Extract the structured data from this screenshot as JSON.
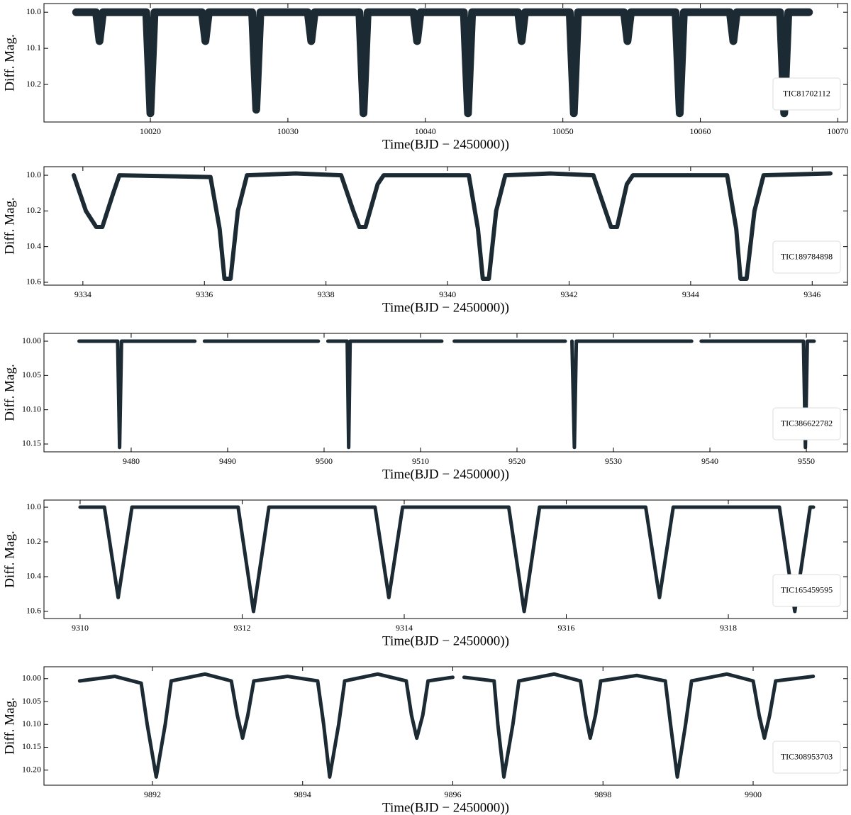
{
  "chart_data": [
    {
      "type": "line",
      "xlabel": "Time(BJD − 2450000))",
      "ylabel": "Diff. Mag.",
      "yinvert": true,
      "legend": "lower right",
      "xlim": [
        10012.26,
        10070.7
      ],
      "ylim": [
        9.976,
        10.304
      ],
      "xticks": [
        10020,
        10030,
        10040,
        10050,
        10060,
        10070
      ],
      "yticks": [
        {
          "value": 10,
          "label": "10.0"
        },
        10.1,
        10.2
      ],
      "x": [
        10014.6,
        10016.05,
        10016.3,
        10016.55,
        10019.7,
        10020.0,
        10020.3,
        10023.75,
        10024.0,
        10024.25,
        10027.4,
        10027.7,
        10028.0,
        10031.45,
        10031.7,
        10031.95,
        10035.2,
        10035.5,
        10035.8,
        10039.15,
        10039.4,
        10039.65,
        10042.8,
        10043.1,
        10043.4,
        10046.75,
        10047.0,
        10047.25,
        10050.5,
        10050.8,
        10051.1,
        10054.45,
        10054.7,
        10054.95,
        10058.2,
        10058.5,
        10058.8,
        10062.15,
        10062.4,
        10062.65,
        10065.8,
        10066.1,
        10066.4,
        10067.9
      ],
      "series": [
        {
          "name": "TIC81702112",
          "color": "#1c2a33",
          "values": [
            10.0,
            10.0,
            10.08,
            10.0,
            10.0,
            10.28,
            10.0,
            10.0,
            10.08,
            10.0,
            10.0,
            10.27,
            10.0,
            10.0,
            10.08,
            10.0,
            10.0,
            10.28,
            10.0,
            10.0,
            10.08,
            10.0,
            10.0,
            10.28,
            10.0,
            10.0,
            10.08,
            10.0,
            10.0,
            10.28,
            10.0,
            10.0,
            10.08,
            10.0,
            10.0,
            10.28,
            10.0,
            10.0,
            10.08,
            10.0,
            10.0,
            10.28,
            10.0,
            10.0
          ]
        }
      ]
    },
    {
      "type": "line",
      "xlabel": "Time(BJD − 2450000))",
      "ylabel": "Diff. Mag.",
      "yinvert": true,
      "legend": "lower right",
      "xlim": [
        9333.36,
        9346.58
      ],
      "ylim": [
        9.952,
        10.616
      ],
      "xticks": [
        9334,
        9336,
        9338,
        9340,
        9342,
        9344,
        9346
      ],
      "yticks": [
        {
          "value": 10,
          "label": "10.0"
        },
        10.2,
        10.4,
        10.6
      ],
      "x": [
        9333.85,
        9334.05,
        9334.22,
        9334.32,
        9334.5,
        9334.6,
        9336.1,
        9336.25,
        9336.33,
        9336.43,
        9336.55,
        9336.7,
        9337.5,
        9338.25,
        9338.45,
        9338.55,
        9338.65,
        9338.85,
        9338.95,
        9340.35,
        9340.5,
        9340.58,
        9340.68,
        9340.8,
        9340.95,
        9341.7,
        9342.4,
        9342.6,
        9342.69,
        9342.79,
        9342.95,
        9343.05,
        9344.6,
        9344.75,
        9344.82,
        9344.92,
        9345.05,
        9345.2,
        9346.3
      ],
      "series": [
        {
          "name": "TIC189784898",
          "color": "#1c2a33",
          "values": [
            10.0,
            10.2,
            10.29,
            10.29,
            10.1,
            10.0,
            10.01,
            10.3,
            10.58,
            10.58,
            10.2,
            10.0,
            9.99,
            10.0,
            10.2,
            10.29,
            10.29,
            10.05,
            10.0,
            10.0,
            10.3,
            10.58,
            10.58,
            10.2,
            10.0,
            9.99,
            10.0,
            10.2,
            10.29,
            10.29,
            10.05,
            10.0,
            10.0,
            10.3,
            10.58,
            10.58,
            10.2,
            10.0,
            9.99
          ]
        }
      ]
    },
    {
      "type": "line",
      "xlabel": "Time(BJD − 2450000))",
      "ylabel": "Diff. Mag.",
      "yinvert": true,
      "legend": "lower right",
      "xlim": [
        9470.96,
        9554.26
      ],
      "ylim": [
        9.9886,
        10.1614
      ],
      "xticks": [
        9480,
        9490,
        9500,
        9510,
        9520,
        9530,
        9540,
        9550
      ],
      "yticks": [
        {
          "value": 10,
          "label": "10.00"
        },
        10.05,
        {
          "value": 10.1,
          "label": "10.10"
        },
        10.15
      ],
      "x": [
        9474.6,
        9478.6,
        9478.8,
        9479.0,
        9486.6,
        9487.1,
        9487.6,
        9499.4,
        9499.9,
        9500.4,
        9502.4,
        9502.55,
        9502.7,
        9512.2,
        9512.85,
        9513.5,
        9525.0,
        9525.35,
        9525.7,
        9525.95,
        9526.15,
        9538.1,
        9538.6,
        9539.1,
        9549.7,
        9549.9,
        9550.1,
        9550.8
      ],
      "series": [
        {
          "name": "TIC386622782",
          "color": "#1c2a33",
          "values": [
            10.0,
            10.0,
            10.155,
            10.0,
            10.0,
            null,
            10.0,
            10.0,
            null,
            10.0,
            10.0,
            10.155,
            10.0,
            10.0,
            null,
            10.0,
            10.0,
            null,
            10.0,
            10.155,
            10.0,
            10.0,
            null,
            10.0,
            10.0,
            10.155,
            10.0,
            10.0
          ]
        }
      ]
    },
    {
      "type": "line",
      "xlabel": "Time(BJD − 2450000))",
      "ylabel": "Diff. Mag.",
      "yinvert": true,
      "legend": "lower right",
      "xlim": [
        9309.554,
        9319.47
      ],
      "ylim": [
        9.959,
        10.641
      ],
      "xticks": [
        9310,
        9312,
        9314,
        9316,
        9318
      ],
      "yticks": [
        {
          "value": 10,
          "label": "10.0"
        },
        10.2,
        10.4,
        10.6
      ],
      "x": [
        9310.0,
        9310.3,
        9310.47,
        9310.64,
        9311.95,
        9312.14,
        9312.33,
        9313.64,
        9313.81,
        9313.98,
        9315.29,
        9315.48,
        9315.67,
        9316.98,
        9317.15,
        9317.32,
        9318.63,
        9318.82,
        9319.01,
        9319.05
      ],
      "series": [
        {
          "name": "TIC165459595",
          "color": "#1c2a33",
          "values": [
            10.0,
            10.0,
            10.52,
            10.0,
            10.0,
            10.6,
            10.0,
            10.0,
            10.52,
            10.0,
            10.0,
            10.6,
            10.0,
            10.0,
            10.52,
            10.0,
            10.0,
            10.6,
            10.0,
            10.0
          ]
        }
      ]
    },
    {
      "type": "line",
      "xlabel": "Time(BJD − 2450000))",
      "ylabel": "Diff. Mag.",
      "yinvert": true,
      "legend": "lower right",
      "xlim": [
        9890.555,
        9901.256
      ],
      "ylim": [
        9.974,
        10.233
      ],
      "xticks": [
        9892,
        9894,
        9896,
        9898,
        9900
      ],
      "yticks": [
        {
          "value": 10,
          "label": "10.00"
        },
        10.05,
        {
          "value": 10.1,
          "label": "10.10"
        },
        10.15,
        {
          "value": 10.2,
          "label": "10.20"
        }
      ],
      "x": [
        9891.03,
        9891.5,
        9891.85,
        9891.93,
        9892.05,
        9892.17,
        9892.25,
        9892.7,
        9893.05,
        9893.13,
        9893.2,
        9893.27,
        9893.35,
        9893.8,
        9894.2,
        9894.28,
        9894.36,
        9894.48,
        9894.56,
        9895.0,
        9895.38,
        9895.45,
        9895.52,
        9895.6,
        9895.67,
        9896.0,
        9896.07,
        9896.15,
        9896.55,
        9896.6,
        9896.68,
        9896.8,
        9896.88,
        9897.35,
        9897.7,
        9897.77,
        9897.83,
        9897.9,
        9897.97,
        9898.45,
        9898.83,
        9898.9,
        9898.99,
        9899.1,
        9899.18,
        9899.65,
        9900.0,
        9900.08,
        9900.15,
        9900.22,
        9900.3,
        9900.8
      ],
      "series": [
        {
          "name": "TIC308953703",
          "color": "#1c2a33",
          "values": [
            10.005,
            9.995,
            10.01,
            10.1,
            10.215,
            10.1,
            10.005,
            9.99,
            10.005,
            10.08,
            10.13,
            10.08,
            10.005,
            9.995,
            10.005,
            10.1,
            10.215,
            10.1,
            10.005,
            9.99,
            10.005,
            10.08,
            10.13,
            10.08,
            10.005,
            9.997,
            null,
            9.997,
            10.005,
            10.1,
            10.215,
            10.1,
            10.005,
            9.99,
            10.005,
            10.08,
            10.13,
            10.08,
            10.005,
            9.993,
            10.005,
            10.1,
            10.215,
            10.1,
            10.005,
            9.99,
            10.005,
            10.08,
            10.13,
            10.08,
            10.005,
            9.995
          ]
        }
      ]
    }
  ]
}
